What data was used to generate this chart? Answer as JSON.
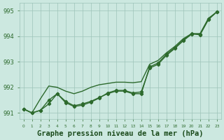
{
  "title": "Graphe pression niveau de la mer (hPa)",
  "x_values": [
    0,
    1,
    2,
    3,
    4,
    5,
    6,
    7,
    8,
    9,
    10,
    11,
    12,
    13,
    14,
    15,
    16,
    17,
    18,
    19,
    20,
    21,
    22,
    23
  ],
  "line1": [
    991.15,
    991.0,
    991.1,
    991.5,
    991.75,
    991.45,
    991.28,
    991.35,
    991.45,
    991.6,
    991.75,
    991.85,
    991.85,
    991.75,
    991.75,
    992.8,
    992.95,
    993.3,
    993.55,
    993.85,
    994.1,
    994.05,
    994.65,
    994.95
  ],
  "line2": [
    991.15,
    991.0,
    991.1,
    991.35,
    991.75,
    991.4,
    991.25,
    991.3,
    991.42,
    991.58,
    991.78,
    991.88,
    991.88,
    991.78,
    991.82,
    992.75,
    992.9,
    993.25,
    993.52,
    993.82,
    994.08,
    994.08,
    994.68,
    994.95
  ],
  "line3": [
    991.15,
    991.0,
    991.55,
    992.05,
    992.0,
    991.85,
    991.75,
    991.85,
    992.0,
    992.1,
    992.15,
    992.2,
    992.2,
    992.18,
    992.22,
    992.9,
    993.05,
    993.35,
    993.6,
    993.9,
    994.1,
    994.1,
    994.7,
    994.95
  ],
  "ylim": [
    990.75,
    995.3
  ],
  "yticks": [
    991,
    992,
    993,
    994,
    995
  ],
  "xlim": [
    -0.5,
    23.5
  ],
  "line_color": "#2d6a2d",
  "bg_color": "#cce8e0",
  "grid_color": "#9dc4b8",
  "title_color": "#1a4a1a",
  "title_fontsize": 7.5,
  "marker": "P",
  "marker_size": 2.8,
  "linewidth": 1.0
}
